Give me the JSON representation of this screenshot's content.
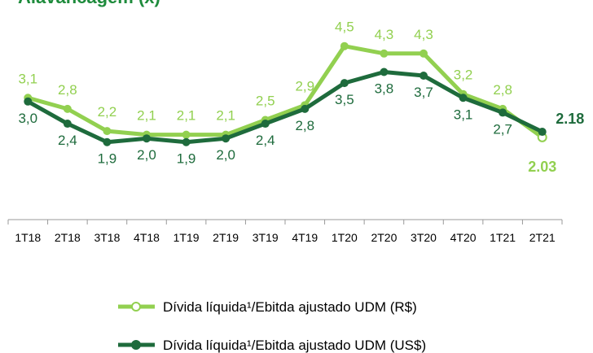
{
  "chart_data": {
    "type": "line",
    "title": "Alavancagem (x)",
    "categories": [
      "1T18",
      "2T18",
      "3T18",
      "4T18",
      "1T19",
      "2T19",
      "3T19",
      "4T19",
      "1T20",
      "2T20",
      "3T20",
      "4T20",
      "1T21",
      "2T21"
    ],
    "series": [
      {
        "name": "Dívida líquida¹/Ebitda ajustado UDM (R$)",
        "color": "#92d050",
        "values": [
          3.1,
          2.8,
          2.2,
          2.1,
          2.1,
          2.1,
          2.5,
          2.9,
          4.5,
          4.3,
          4.3,
          3.2,
          2.8,
          2.03
        ],
        "value_labels": [
          "3,1",
          "2,8",
          "2,2",
          "2,1",
          "2,1",
          "2,1",
          "2,5",
          "2,9",
          "4,5",
          "4,3",
          "4,3",
          "3,2",
          "2,8",
          "2.03"
        ]
      },
      {
        "name": "Dívida líquida¹/Ebitda ajustado UDM (US$)",
        "color": "#1e6b3c",
        "values": [
          3.0,
          2.4,
          1.9,
          2.0,
          1.9,
          2.0,
          2.4,
          2.8,
          3.5,
          3.8,
          3.7,
          3.1,
          2.7,
          2.18
        ],
        "value_labels": [
          "3,0",
          "2,4",
          "1,9",
          "2,0",
          "1,9",
          "2,0",
          "2,4",
          "2,8",
          "3,5",
          "3,8",
          "3,7",
          "3,1",
          "2,7",
          "2.18"
        ]
      }
    ],
    "ylim": [
      0,
      5
    ],
    "legend": "bottom"
  }
}
